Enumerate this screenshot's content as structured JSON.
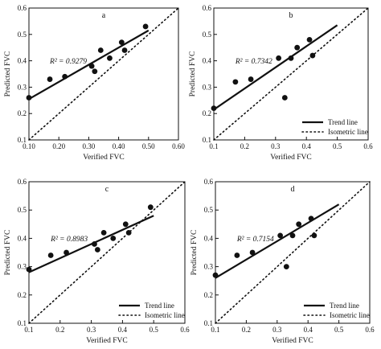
{
  "chart_data": [
    {
      "type": "scatter",
      "panel": "a",
      "xlabel": "Verified FVC",
      "ylabel": "Predicted FVC",
      "xlim": [
        0.1,
        0.6
      ],
      "ylim": [
        0.1,
        0.6
      ],
      "xticks": [
        "0.10",
        "0.20",
        "0.30",
        "0.40",
        "0.50",
        "0.60"
      ],
      "yticks": [
        "0.1",
        "0.2",
        "0.3",
        "0.4",
        "0.5",
        "0.6"
      ],
      "r2_text": "R² = 0.9279",
      "points": [
        [
          0.1,
          0.26
        ],
        [
          0.17,
          0.33
        ],
        [
          0.22,
          0.34
        ],
        [
          0.31,
          0.38
        ],
        [
          0.32,
          0.36
        ],
        [
          0.34,
          0.44
        ],
        [
          0.37,
          0.41
        ],
        [
          0.41,
          0.47
        ],
        [
          0.42,
          0.44
        ],
        [
          0.49,
          0.53
        ]
      ],
      "trend_line": [
        [
          0.1,
          0.255
        ],
        [
          0.5,
          0.515
        ]
      ],
      "isometric_line": [
        [
          0.1,
          0.1
        ],
        [
          0.6,
          0.6
        ]
      ],
      "grid": false,
      "legend": null
    },
    {
      "type": "scatter",
      "panel": "b",
      "xlabel": "Verified FVC",
      "ylabel": "Predicted FVC",
      "xlim": [
        0.1,
        0.6
      ],
      "ylim": [
        0.1,
        0.6
      ],
      "xticks": [
        "0.1",
        "0.2",
        "0.3",
        "0.4",
        "0.5",
        "0.6"
      ],
      "yticks": [
        "0.1",
        "0.2",
        "0.3",
        "0.4",
        "0.5",
        "0.6"
      ],
      "r2_text": "R² = 0.7342",
      "points": [
        [
          0.1,
          0.22
        ],
        [
          0.17,
          0.32
        ],
        [
          0.22,
          0.33
        ],
        [
          0.31,
          0.41
        ],
        [
          0.33,
          0.26
        ],
        [
          0.35,
          0.41
        ],
        [
          0.37,
          0.45
        ],
        [
          0.41,
          0.48
        ],
        [
          0.42,
          0.42
        ]
      ],
      "trend_line": [
        [
          0.1,
          0.215
        ],
        [
          0.5,
          0.535
        ]
      ],
      "isometric_line": [
        [
          0.1,
          0.1
        ],
        [
          0.6,
          0.6
        ]
      ],
      "grid": false,
      "legend": {
        "placement": "bottom-right",
        "entries": [
          "Trend line",
          "Isometric line"
        ]
      }
    },
    {
      "type": "scatter",
      "panel": "c",
      "xlabel": "Verified FVC",
      "ylabel": "Predicted FVC",
      "xlim": [
        0.1,
        0.6
      ],
      "ylim": [
        0.1,
        0.6
      ],
      "xticks": [
        "0.1",
        "0.2",
        "0.3",
        "0.4",
        "0.5",
        "0.6"
      ],
      "yticks": [
        "0.1",
        "0.2",
        "0.3",
        "0.4",
        "0.5",
        "0.6"
      ],
      "r2_text": "R² = 0.8983",
      "points": [
        [
          0.1,
          0.29
        ],
        [
          0.17,
          0.34
        ],
        [
          0.22,
          0.35
        ],
        [
          0.31,
          0.38
        ],
        [
          0.32,
          0.36
        ],
        [
          0.34,
          0.42
        ],
        [
          0.37,
          0.4
        ],
        [
          0.41,
          0.45
        ],
        [
          0.42,
          0.42
        ],
        [
          0.49,
          0.51
        ]
      ],
      "trend_line": [
        [
          0.1,
          0.28
        ],
        [
          0.5,
          0.48
        ]
      ],
      "isometric_line": [
        [
          0.1,
          0.1
        ],
        [
          0.6,
          0.6
        ]
      ],
      "grid": false,
      "legend": {
        "placement": "bottom-right",
        "entries": [
          "Trend line",
          "Isometric line"
        ]
      }
    },
    {
      "type": "scatter",
      "panel": "d",
      "xlabel": "Verified FVC",
      "ylabel": "Predicted FVC",
      "xlim": [
        0.1,
        0.6
      ],
      "ylim": [
        0.1,
        0.6
      ],
      "xticks": [
        "0.1",
        "0.2",
        "0.3",
        "0.4",
        "0.5",
        "0.6"
      ],
      "yticks": [
        "0.1",
        "0.2",
        "0.3",
        "0.4",
        "0.5",
        "0.6"
      ],
      "r2_text": "R² = 0.7154",
      "points": [
        [
          0.1,
          0.27
        ],
        [
          0.17,
          0.34
        ],
        [
          0.22,
          0.35
        ],
        [
          0.31,
          0.41
        ],
        [
          0.33,
          0.3
        ],
        [
          0.35,
          0.41
        ],
        [
          0.37,
          0.45
        ],
        [
          0.41,
          0.47
        ],
        [
          0.42,
          0.41
        ]
      ],
      "trend_line": [
        [
          0.1,
          0.26
        ],
        [
          0.5,
          0.52
        ]
      ],
      "isometric_line": [
        [
          0.1,
          0.1
        ],
        [
          0.6,
          0.6
        ]
      ],
      "grid": false,
      "legend": {
        "placement": "bottom-right",
        "entries": [
          "Trend line",
          "Isometric line"
        ]
      }
    }
  ]
}
